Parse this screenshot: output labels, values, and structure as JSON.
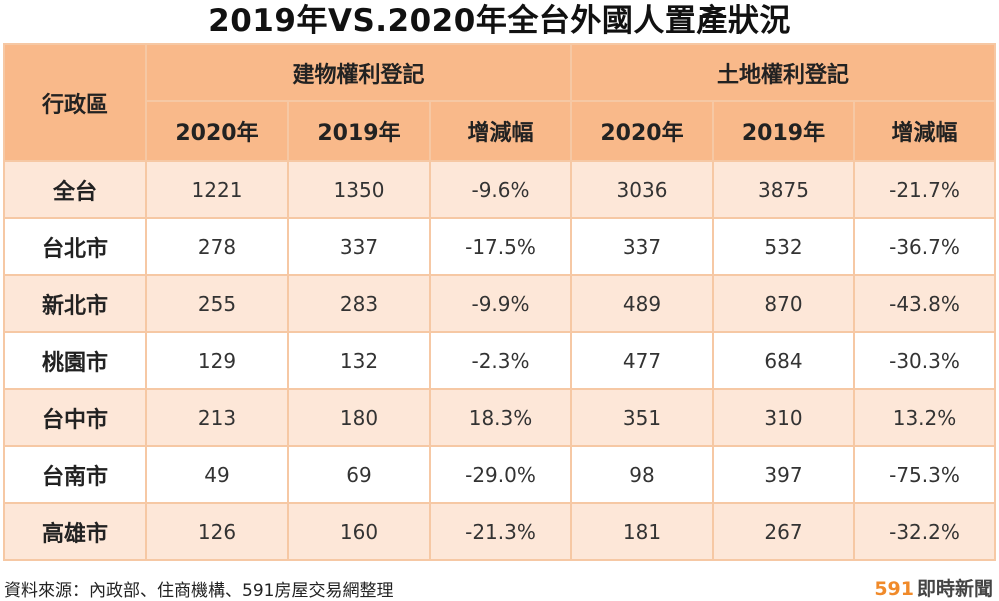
{
  "title": "2019年VS.2020年全台外國人置產狀況",
  "table": {
    "region_header": "行政區",
    "group_headers": [
      "建物權利登記",
      "土地權利登記"
    ],
    "sub_headers": [
      "2020年",
      "2019年",
      "增減幅",
      "2020年",
      "2019年",
      "增減幅"
    ],
    "rows": [
      {
        "region": "全台",
        "values": [
          "1221",
          "1350",
          "-9.6%",
          "3036",
          "3875",
          "-21.7%"
        ]
      },
      {
        "region": "台北市",
        "values": [
          "278",
          "337",
          "-17.5%",
          "337",
          "532",
          "-36.7%"
        ]
      },
      {
        "region": "新北市",
        "values": [
          "255",
          "283",
          "-9.9%",
          "489",
          "870",
          "-43.8%"
        ]
      },
      {
        "region": "桃園市",
        "values": [
          "129",
          "132",
          "-2.3%",
          "477",
          "684",
          "-30.3%"
        ]
      },
      {
        "region": "台中市",
        "values": [
          "213",
          "180",
          "18.3%",
          "351",
          "310",
          "13.2%"
        ]
      },
      {
        "region": "台南市",
        "values": [
          "49",
          "69",
          "-29.0%",
          "98",
          "397",
          "-75.3%"
        ]
      },
      {
        "region": "高雄市",
        "values": [
          "126",
          "160",
          "-21.3%",
          "181",
          "267",
          "-32.2%"
        ]
      }
    ]
  },
  "footer": {
    "source": "資料來源：內政部、住商機構、591房屋交易網整理",
    "brand_number": "591",
    "brand_name": "即時新聞"
  }
}
